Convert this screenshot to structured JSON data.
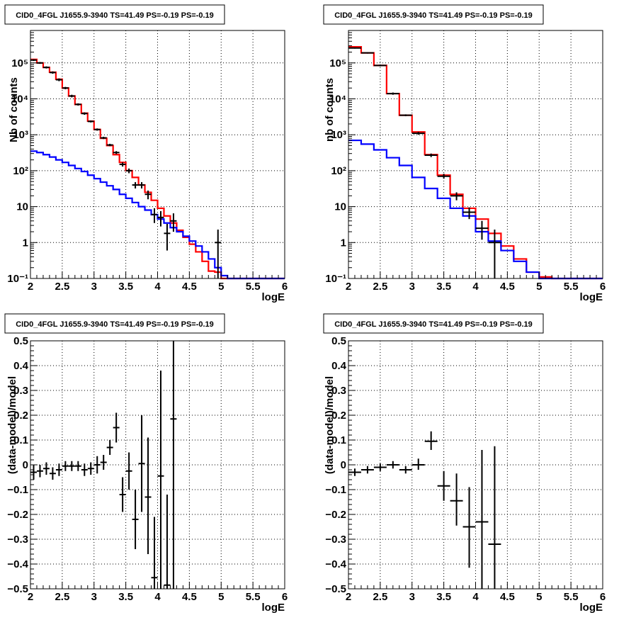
{
  "chart_data": [
    {
      "type": "line",
      "title": "CID0_4FGL J1655.9-3940 TS=41.49 PS=-0.19 PS=-0.19",
      "xlabel": "logE",
      "ylabel": "Nb of counts",
      "xlim": [
        2,
        6
      ],
      "ylim": [
        0.1,
        800000
      ],
      "yscale": "log",
      "grid": true,
      "xticks": [
        "2",
        "2.5",
        "3",
        "3.5",
        "4",
        "4.5",
        "5",
        "5.5",
        "6"
      ],
      "yticks": [
        "10⁻¹",
        "1",
        "10",
        "10²",
        "10³",
        "10⁴",
        "10⁵"
      ],
      "bin_edges": [
        2.0,
        2.1,
        2.2,
        2.3,
        2.4,
        2.5,
        2.6,
        2.7,
        2.8,
        2.9,
        3.0,
        3.1,
        3.2,
        3.3,
        3.4,
        3.5,
        3.6,
        3.7,
        3.8,
        3.9,
        4.0,
        4.1,
        4.2,
        4.3,
        4.4,
        4.5,
        4.6,
        4.7,
        4.8,
        4.9,
        5.0,
        5.1,
        5.2,
        5.3,
        5.4,
        5.5,
        5.6,
        5.7,
        5.8,
        5.9,
        6.0
      ],
      "series": [
        {
          "color": "#ff0000",
          "style": "step",
          "values": [
            125000,
            100000,
            75000,
            55000,
            35000,
            20000,
            12000,
            7000,
            4000,
            2400,
            1400,
            800,
            500,
            280,
            170,
            100,
            65,
            40,
            25,
            15,
            9,
            5.5,
            3.5,
            2.2,
            1.4,
            0.9,
            0.55,
            0.3,
            0.16,
            0.15,
            0.1,
            0.1,
            0.1,
            0.1,
            0.1,
            0.1,
            0.1,
            0.1,
            0.1,
            0.1
          ]
        },
        {
          "color": "#0000ff",
          "style": "step",
          "values": [
            350,
            320,
            280,
            240,
            200,
            170,
            140,
            115,
            95,
            75,
            60,
            48,
            38,
            30,
            22,
            17,
            13,
            10,
            8,
            6,
            4.5,
            3.5,
            2.6,
            2,
            1.5,
            1.1,
            0.8,
            0.55,
            0.35,
            0.2,
            0.12,
            0.1,
            0.1,
            0.1,
            0.1,
            0.1,
            0.1,
            0.1,
            0.1,
            0.1
          ]
        }
      ],
      "data_points": [
        {
          "x": 2.05,
          "y": 120000,
          "lo": 113000,
          "hi": 127000
        },
        {
          "x": 2.15,
          "y": 100000,
          "lo": 94000,
          "hi": 106000
        },
        {
          "x": 2.25,
          "y": 75000,
          "lo": 70000,
          "hi": 80000
        },
        {
          "x": 2.35,
          "y": 54000,
          "lo": 50000,
          "hi": 58000
        },
        {
          "x": 2.45,
          "y": 34000,
          "lo": 31000,
          "hi": 37000
        },
        {
          "x": 2.55,
          "y": 20000,
          "lo": 18500,
          "hi": 21500
        },
        {
          "x": 2.65,
          "y": 12000,
          "lo": 11000,
          "hi": 13000
        },
        {
          "x": 2.75,
          "y": 7000,
          "lo": 6500,
          "hi": 7500
        },
        {
          "x": 2.85,
          "y": 3900,
          "lo": 3600,
          "hi": 4200
        },
        {
          "x": 2.95,
          "y": 2350,
          "lo": 2200,
          "hi": 2500
        },
        {
          "x": 3.05,
          "y": 1400,
          "lo": 1300,
          "hi": 1500
        },
        {
          "x": 3.15,
          "y": 820,
          "lo": 760,
          "hi": 880
        },
        {
          "x": 3.25,
          "y": 520,
          "lo": 480,
          "hi": 560
        },
        {
          "x": 3.35,
          "y": 320,
          "lo": 290,
          "hi": 350
        },
        {
          "x": 3.45,
          "y": 150,
          "lo": 130,
          "hi": 170
        },
        {
          "x": 3.55,
          "y": 100,
          "lo": 85,
          "hi": 115
        },
        {
          "x": 3.65,
          "y": 40,
          "lo": 32,
          "hi": 48
        },
        {
          "x": 3.75,
          "y": 40,
          "lo": 32,
          "hi": 48
        },
        {
          "x": 3.85,
          "y": 22,
          "lo": 16,
          "hi": 28
        },
        {
          "x": 3.95,
          "y": 6,
          "lo": 3.5,
          "hi": 9
        },
        {
          "x": 4.05,
          "y": 5,
          "lo": 2.8,
          "hi": 7.5
        },
        {
          "x": 4.15,
          "y": 1.8,
          "lo": 0.6,
          "hi": 3.3
        },
        {
          "x": 4.25,
          "y": 4,
          "lo": 2,
          "hi": 6.5
        },
        {
          "x": 4.95,
          "y": 1,
          "lo": 0.1,
          "hi": 2.3
        }
      ]
    },
    {
      "type": "line",
      "title": "CID0_4FGL J1655.9-3940 TS=41.49 PS=-0.19 PS=-0.19",
      "xlabel": "logE",
      "ylabel": "nb of counts",
      "xlim": [
        2,
        6
      ],
      "ylim": [
        0.1,
        800000
      ],
      "yscale": "log",
      "grid": true,
      "xticks": [
        "2",
        "2.5",
        "3",
        "3.5",
        "4",
        "4.5",
        "5",
        "5.5",
        "6"
      ],
      "yticks": [
        "10⁻¹",
        "1",
        "10",
        "10²",
        "10³",
        "10⁴",
        "10⁵"
      ],
      "bin_edges": [
        2.0,
        2.2,
        2.4,
        2.6,
        2.8,
        3.0,
        3.2,
        3.4,
        3.6,
        3.8,
        4.0,
        4.2,
        4.4,
        4.6,
        4.8,
        5.0,
        5.2,
        5.4,
        5.6,
        5.8,
        6.0
      ],
      "series": [
        {
          "color": "#ff0000",
          "style": "step",
          "values": [
            280000,
            190000,
            85000,
            14000,
            3500,
            1200,
            280,
            75,
            22,
            9,
            4.5,
            1.8,
            0.8,
            0.35,
            0.15,
            0.11,
            0.1,
            0.1,
            0.1,
            0.1
          ]
        },
        {
          "color": "#0000ff",
          "style": "step",
          "values": [
            700,
            550,
            380,
            230,
            140,
            65,
            32,
            17,
            9,
            5.5,
            2,
            1.1,
            0.6,
            0.3,
            0.15,
            0.1,
            0.1,
            0.1,
            0.1,
            0.1
          ]
        }
      ],
      "data_points": [
        {
          "x": 2.1,
          "y": 260000,
          "lo": 250000,
          "hi": 270000
        },
        {
          "x": 2.3,
          "y": 190000,
          "lo": 182000,
          "hi": 198000
        },
        {
          "x": 2.5,
          "y": 85000,
          "lo": 80000,
          "hi": 90000
        },
        {
          "x": 2.7,
          "y": 14000,
          "lo": 13000,
          "hi": 15000
        },
        {
          "x": 2.9,
          "y": 3500,
          "lo": 3300,
          "hi": 3700
        },
        {
          "x": 3.1,
          "y": 1100,
          "lo": 1000,
          "hi": 1200
        },
        {
          "x": 3.3,
          "y": 270,
          "lo": 240,
          "hi": 300
        },
        {
          "x": 3.5,
          "y": 70,
          "lo": 60,
          "hi": 82
        },
        {
          "x": 3.7,
          "y": 20,
          "lo": 15,
          "hi": 25
        },
        {
          "x": 3.9,
          "y": 7,
          "lo": 4.5,
          "hi": 9.5
        },
        {
          "x": 4.1,
          "y": 2.5,
          "lo": 1.2,
          "hi": 4
        },
        {
          "x": 4.3,
          "y": 1,
          "lo": 0.1,
          "hi": 2.3
        }
      ]
    },
    {
      "type": "scatter",
      "title": "CID0_4FGL J1655.9-3940 TS=41.49 PS=-0.19 PS=-0.19",
      "xlabel": "logE",
      "ylabel": "(data-model)/model",
      "xlim": [
        2,
        6
      ],
      "ylim": [
        -0.5,
        0.5
      ],
      "grid": true,
      "xticks": [
        "2",
        "2.5",
        "3",
        "3.5",
        "4",
        "4.5",
        "5",
        "5.5",
        "6"
      ],
      "yticks": [
        "−0.5",
        "−0.4",
        "−0.3",
        "−0.2",
        "−0.1",
        "0",
        "0.1",
        "0.2",
        "0.3",
        "0.4",
        "0.5"
      ],
      "xerr": 0.05,
      "data_points": [
        {
          "x": 2.05,
          "y": -0.03,
          "lo": -0.06,
          "hi": 0.0
        },
        {
          "x": 2.15,
          "y": -0.025,
          "lo": -0.05,
          "hi": 0.0
        },
        {
          "x": 2.25,
          "y": -0.015,
          "lo": -0.04,
          "hi": 0.01
        },
        {
          "x": 2.35,
          "y": -0.035,
          "lo": -0.06,
          "hi": -0.01
        },
        {
          "x": 2.45,
          "y": -0.02,
          "lo": -0.045,
          "hi": 0.005
        },
        {
          "x": 2.55,
          "y": -0.005,
          "lo": -0.025,
          "hi": 0.015
        },
        {
          "x": 2.65,
          "y": -0.005,
          "lo": -0.025,
          "hi": 0.015
        },
        {
          "x": 2.75,
          "y": -0.005,
          "lo": -0.025,
          "hi": 0.015
        },
        {
          "x": 2.85,
          "y": -0.02,
          "lo": -0.045,
          "hi": 0.005
        },
        {
          "x": 2.95,
          "y": -0.015,
          "lo": -0.04,
          "hi": 0.01
        },
        {
          "x": 3.05,
          "y": 0.0,
          "lo": -0.035,
          "hi": 0.035
        },
        {
          "x": 3.15,
          "y": 0.01,
          "lo": -0.02,
          "hi": 0.04
        },
        {
          "x": 3.25,
          "y": 0.07,
          "lo": 0.04,
          "hi": 0.1
        },
        {
          "x": 3.35,
          "y": 0.15,
          "lo": 0.09,
          "hi": 0.21
        },
        {
          "x": 3.45,
          "y": -0.12,
          "lo": -0.19,
          "hi": -0.05
        },
        {
          "x": 3.55,
          "y": -0.025,
          "lo": -0.1,
          "hi": 0.05
        },
        {
          "x": 3.65,
          "y": -0.22,
          "lo": -0.34,
          "hi": -0.1
        },
        {
          "x": 3.75,
          "y": 0.005,
          "lo": -0.19,
          "hi": 0.2
        },
        {
          "x": 3.85,
          "y": -0.13,
          "lo": -0.36,
          "hi": 0.11
        },
        {
          "x": 3.95,
          "y": -0.455,
          "lo": -0.5,
          "hi": -0.21
        },
        {
          "x": 4.05,
          "y": -0.045,
          "lo": -0.5,
          "hi": 0.38
        },
        {
          "x": 4.15,
          "y": -0.485,
          "lo": -0.5,
          "hi": -0.12
        },
        {
          "x": 4.25,
          "y": 0.185,
          "lo": -0.5,
          "hi": 0.5
        }
      ]
    },
    {
      "type": "scatter",
      "title": "CID0_4FGL J1655.9-3940 TS=41.49 PS=-0.19 PS=-0.19",
      "xlabel": "logE",
      "ylabel": "(data-model)/model",
      "xlim": [
        2,
        6
      ],
      "ylim": [
        -0.5,
        0.5
      ],
      "grid": true,
      "xticks": [
        "2",
        "2.5",
        "3",
        "3.5",
        "4",
        "4.5",
        "5",
        "5.5",
        "6"
      ],
      "yticks": [
        "−0.5",
        "−0.4",
        "−0.3",
        "−0.2",
        "−0.1",
        "0",
        "0.1",
        "0.2",
        "0.3",
        "0.4",
        "0.5"
      ],
      "xerr": 0.1,
      "data_points": [
        {
          "x": 2.1,
          "y": -0.03,
          "lo": -0.045,
          "hi": -0.015
        },
        {
          "x": 2.3,
          "y": -0.02,
          "lo": -0.035,
          "hi": -0.005
        },
        {
          "x": 2.5,
          "y": -0.01,
          "lo": -0.025,
          "hi": 0.005
        },
        {
          "x": 2.7,
          "y": 0.0,
          "lo": -0.015,
          "hi": 0.015
        },
        {
          "x": 2.9,
          "y": -0.02,
          "lo": -0.035,
          "hi": -0.005
        },
        {
          "x": 3.1,
          "y": 0.0,
          "lo": -0.02,
          "hi": 0.025
        },
        {
          "x": 3.3,
          "y": 0.095,
          "lo": 0.06,
          "hi": 0.135
        },
        {
          "x": 3.5,
          "y": -0.085,
          "lo": -0.145,
          "hi": -0.025
        },
        {
          "x": 3.7,
          "y": -0.145,
          "lo": -0.245,
          "hi": -0.035
        },
        {
          "x": 3.9,
          "y": -0.25,
          "lo": -0.415,
          "hi": -0.09
        },
        {
          "x": 4.1,
          "y": -0.23,
          "lo": -0.5,
          "hi": 0.06
        },
        {
          "x": 4.3,
          "y": -0.32,
          "lo": -0.5,
          "hi": 0.075
        }
      ]
    }
  ]
}
